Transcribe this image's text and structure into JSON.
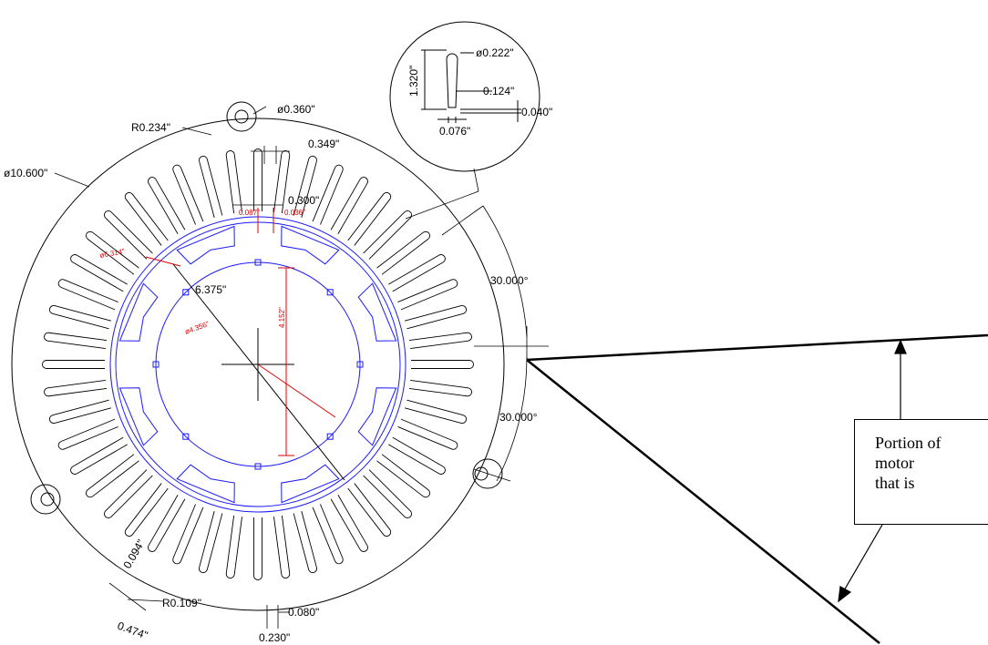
{
  "dimensions": {
    "outer_dia": "ø10.600\"",
    "ear_radius": "R0.234\"",
    "ear_hole": "ø0.360\"",
    "tooth_pitch": "0.349\"",
    "slot_width": "0.300\"",
    "rotor_red_1": "0.087\"",
    "rotor_red_2": "0.036\"",
    "rotor_red_dia": "ø6.314\"",
    "bore_dia": "6.375\"",
    "rotor_inner_dia": "ø4.356\"",
    "rotor_height": "4.152\"",
    "angle_top": "30.000°",
    "angle_bottom": "30.000°",
    "notch_a": "0.094\"",
    "notch_r": "R0.109\"",
    "notch_b": "0.474\"",
    "key_a": "0.080\"",
    "key_b": "0.230\""
  },
  "detail": {
    "slot_dia": "ø0.222\"",
    "slot_length": "1.320\"",
    "neck_width": "0.124\"",
    "tip_depth": "0.040\"",
    "opening": "0.076\""
  },
  "callout": {
    "line1": "Portion of",
    "line2": "motor",
    "line3": "that is"
  },
  "colors": {
    "stator": "#000000",
    "rotor": "#1a1aff",
    "rotor_dims": "#e00000"
  }
}
